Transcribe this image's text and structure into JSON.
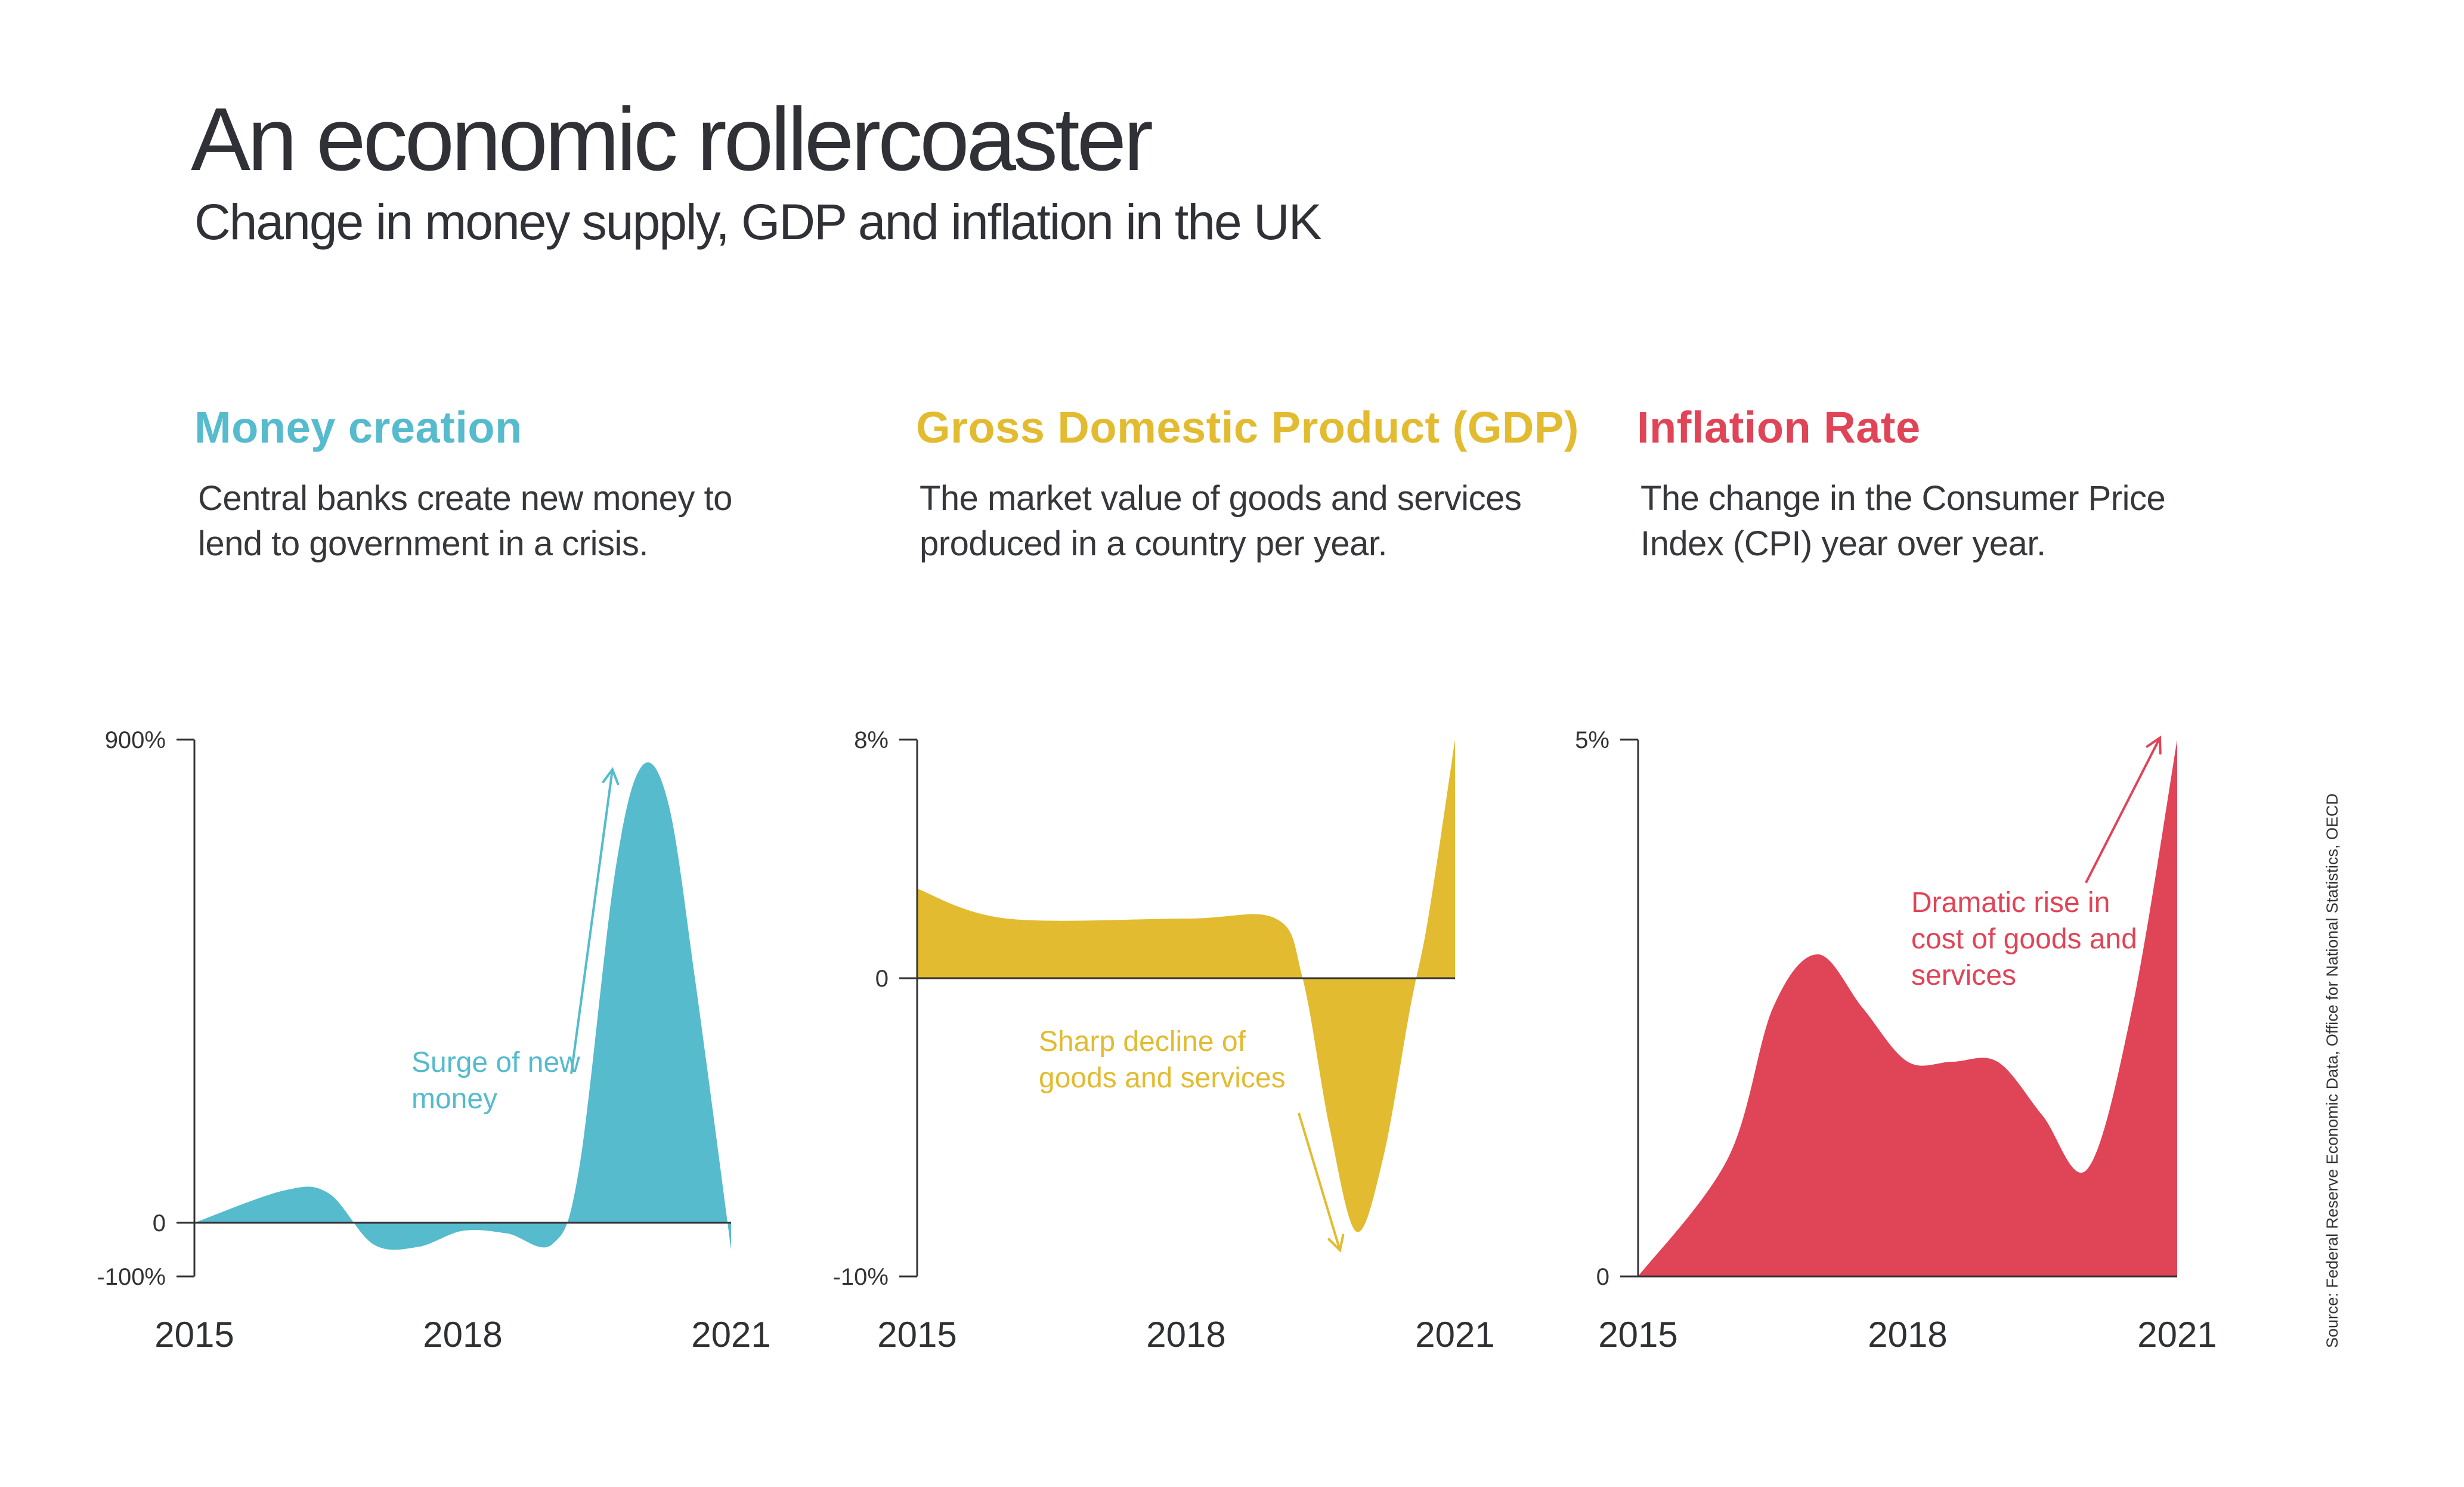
{
  "title": "An economic rollercoaster",
  "subtitle": "Change in money supply, GDP and inflation in the UK",
  "source": "Source: Federal Reserve Economic Data, Office for National Statistics, OECD",
  "panels": [
    {
      "heading": "Money creation",
      "description": "Central banks create new money to lend to government in a crisis.",
      "color": "#55bbcd"
    },
    {
      "heading": "Gross Domestic Product (GDP)",
      "description": "The market value of goods and services produced in a country per year.",
      "color": "#e2bb30"
    },
    {
      "heading": "Inflation Rate",
      "description": "The change in the Consumer Price Index (CPI) year over year.",
      "color": "#e04457"
    }
  ],
  "chart_data": [
    {
      "type": "area",
      "color": "#55bbcd",
      "ylim": [
        -100,
        900
      ],
      "x_ticks": [
        "2015",
        "2018",
        "2021"
      ],
      "y_ticks": [
        "900%",
        "0",
        "-100%"
      ],
      "y_tick_values": [
        900,
        0,
        -100
      ],
      "x": [
        2015.0,
        2016.0,
        2016.5,
        2017.0,
        2017.5,
        2018.0,
        2018.5,
        2019.0,
        2019.3,
        2019.7,
        2020.0,
        2020.3,
        2020.6,
        2021.0
      ],
      "values": [
        0,
        60,
        55,
        -40,
        -45,
        -15,
        -20,
        -40,
        100,
        650,
        850,
        780,
        450,
        -50
      ],
      "annotation": "Surge of new money"
    },
    {
      "type": "area",
      "color": "#e2bb30",
      "ylim": [
        -10,
        8
      ],
      "x_ticks": [
        "2015",
        "2018",
        "2021"
      ],
      "y_ticks": [
        "8%",
        "0",
        "-10%"
      ],
      "y_tick_values": [
        8,
        0,
        -10
      ],
      "x": [
        2015.0,
        2016.0,
        2018.0,
        2019.0,
        2019.3,
        2019.6,
        2019.9,
        2020.2,
        2020.5,
        2020.7,
        2021.0
      ],
      "values": [
        3,
        2,
        2,
        2,
        0,
        -5,
        -8.5,
        -6,
        -1,
        2,
        8
      ],
      "annotation": "Sharp decline of goods and services"
    },
    {
      "type": "area",
      "color": "#e04457",
      "ylim": [
        0,
        5
      ],
      "x_ticks": [
        "2015",
        "2018",
        "2021"
      ],
      "y_ticks": [
        "5%",
        "0"
      ],
      "y_tick_values": [
        5,
        0
      ],
      "x": [
        2015.0,
        2016.0,
        2016.5,
        2017.0,
        2017.5,
        2018.0,
        2018.5,
        2019.0,
        2019.5,
        2020.0,
        2020.5,
        2021.0
      ],
      "values": [
        0,
        1.1,
        2.5,
        3,
        2.5,
        2,
        2,
        2,
        1.5,
        1,
        2.5,
        5
      ],
      "annotation": "Dramatic rise in cost of goods and services"
    }
  ]
}
